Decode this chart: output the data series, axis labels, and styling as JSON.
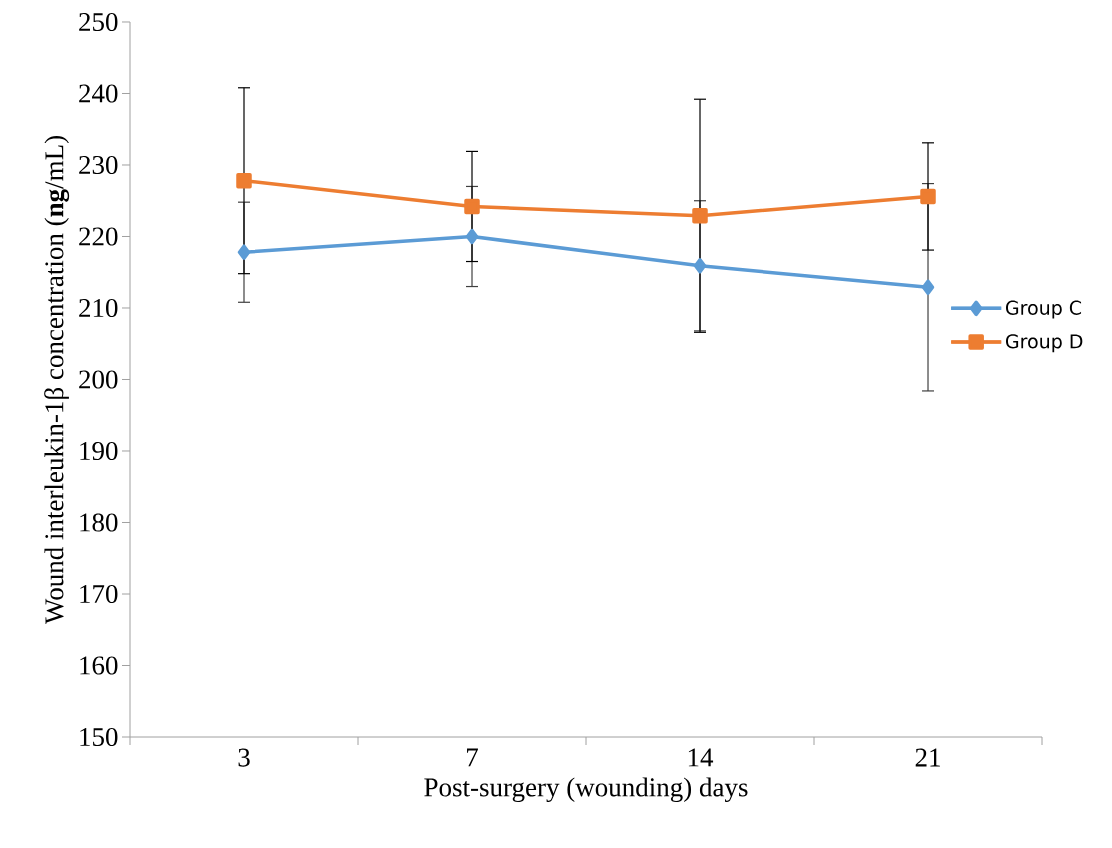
{
  "chart_data": {
    "type": "line",
    "xlabel": "Post-surgery (wounding) days",
    "ylabel": "Wound interleukin-1β concentration (**ng**/mL)",
    "categories": [
      "3",
      "7",
      "14",
      "21"
    ],
    "series": [
      {
        "name": "Group C",
        "color": "#5b9bd5",
        "marker": "diamond",
        "values": [
          217.8,
          220.0,
          215.9,
          212.9
        ],
        "errors": [
          7.0,
          7.0,
          9.1,
          14.5
        ]
      },
      {
        "name": "Group D",
        "color": "#ed7d31",
        "marker": "square",
        "values": [
          227.8,
          224.2,
          222.9,
          225.6
        ],
        "errors": [
          13.0,
          7.7,
          16.3,
          7.5
        ]
      }
    ],
    "ylim": [
      150,
      250
    ],
    "yticks": [
      150,
      160,
      170,
      180,
      190,
      200,
      210,
      220,
      230,
      240,
      250
    ],
    "grid": false,
    "legend": "right",
    "line_style": "solid"
  }
}
